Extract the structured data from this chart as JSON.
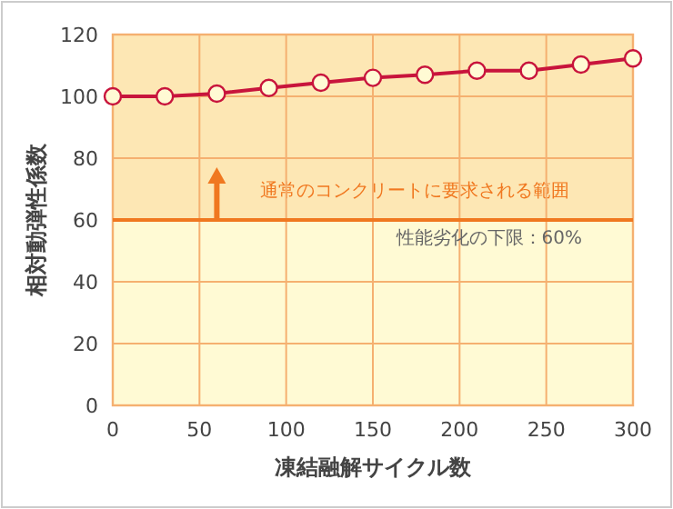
{
  "chart_data": {
    "type": "line",
    "xlabel": "凍結融解サイクル数",
    "ylabel": "相対動弾性係数",
    "x": [
      0,
      30,
      60,
      90,
      120,
      150,
      180,
      210,
      240,
      270,
      300
    ],
    "series": [
      {
        "color": "#c8143c",
        "values": [
          100,
          100,
          100.9,
          102.7,
          104.4,
          106,
          107,
          108.3,
          108.3,
          110.3,
          112.3
        ]
      }
    ],
    "xlim": [
      0,
      300
    ],
    "ylim": [
      0,
      120
    ],
    "xticks": [
      0,
      50,
      100,
      150,
      200,
      250,
      300
    ],
    "yticks": [
      0,
      20,
      40,
      60,
      80,
      100,
      120
    ],
    "grid": true,
    "marker": "circle",
    "line_style": "solid",
    "ref_lines": [
      {
        "axis": "y",
        "value": 60,
        "label": "性能劣化の下限：60%",
        "color": "#f07820"
      }
    ],
    "bands": [
      {
        "axis": "y",
        "from": 60,
        "to": 120,
        "label": "通常のコンクリートに要求される範囲",
        "color": "#fde7b4"
      }
    ]
  }
}
